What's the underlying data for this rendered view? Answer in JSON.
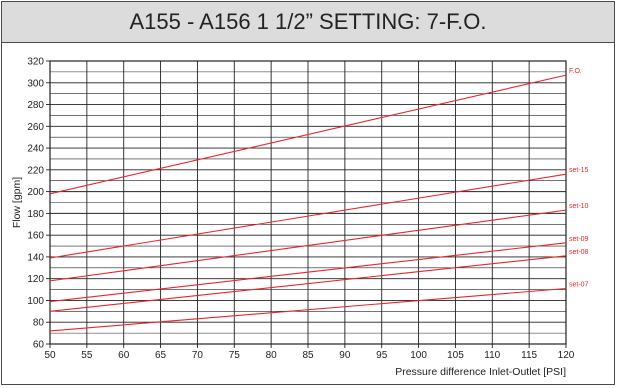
{
  "title": "A155 - A156 1 1/2” SETTING: 7-F.O.",
  "colors": {
    "series": "#e8262a",
    "grid": "#222222",
    "title_bg": "#dcdcdc"
  },
  "chart_data": {
    "type": "line",
    "xlabel": "Pressure difference Inlet-Outlet [PSI]",
    "ylabel": "Flow [gpm]",
    "xlim": [
      50,
      120
    ],
    "ylim": [
      60,
      320
    ],
    "x_ticks": [
      50,
      55,
      60,
      65,
      70,
      75,
      80,
      85,
      90,
      95,
      100,
      105,
      110,
      115,
      120
    ],
    "y_ticks": [
      60,
      80,
      100,
      120,
      140,
      160,
      180,
      200,
      220,
      240,
      260,
      280,
      300,
      320
    ],
    "grid": true,
    "series": [
      {
        "name": "F.O.",
        "x": [
          50,
          120
        ],
        "y": [
          198,
          307
        ]
      },
      {
        "name": "set-15",
        "x": [
          50,
          120
        ],
        "y": [
          139,
          216
        ]
      },
      {
        "name": "set-10",
        "x": [
          50,
          120
        ],
        "y": [
          118,
          183
        ]
      },
      {
        "name": "set-09",
        "x": [
          50,
          120
        ],
        "y": [
          99,
          153
        ]
      },
      {
        "name": "set-08",
        "x": [
          50,
          120
        ],
        "y": [
          90,
          141
        ]
      },
      {
        "name": "set-07",
        "x": [
          50,
          120
        ],
        "y": [
          72,
          111
        ]
      }
    ]
  }
}
